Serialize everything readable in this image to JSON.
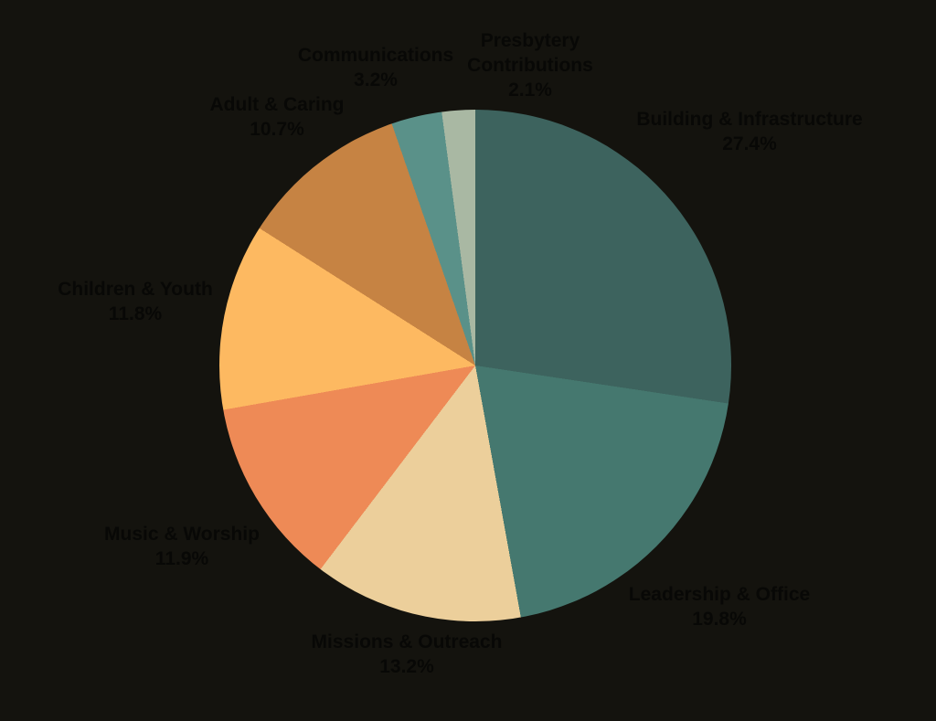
{
  "background_color": "#14130e",
  "text_color": "#080806",
  "chart_data": {
    "type": "pie",
    "title": "",
    "legend": "none",
    "start_angle_deg": 0,
    "direction": "clockwise",
    "label_style": "outside, name plus percent",
    "slices": [
      {
        "label": "Building & Infrastructure",
        "value": 27.4,
        "pct_label": "27.4%",
        "color": "#3d635e"
      },
      {
        "label": "Leadership & Office",
        "value": 19.8,
        "pct_label": "19.8%",
        "color": "#45786f"
      },
      {
        "label": "Missions & Outreach",
        "value": 13.2,
        "pct_label": "13.2%",
        "color": "#eccf9b"
      },
      {
        "label": "Music & Worship",
        "value": 11.9,
        "pct_label": "11.9%",
        "color": "#ee8a56"
      },
      {
        "label": "Children & Youth",
        "value": 11.8,
        "pct_label": "11.8%",
        "color": "#fdb961"
      },
      {
        "label": "Adult & Caring",
        "value": 10.7,
        "pct_label": "10.7%",
        "color": "#c68343"
      },
      {
        "label": "Communications",
        "value": 3.2,
        "pct_label": "3.2%",
        "color": "#5a9189"
      },
      {
        "label": "Presbytery Contributions",
        "value": 2.1,
        "pct_label": "2.1%",
        "color": "#a9b8a3"
      }
    ]
  }
}
